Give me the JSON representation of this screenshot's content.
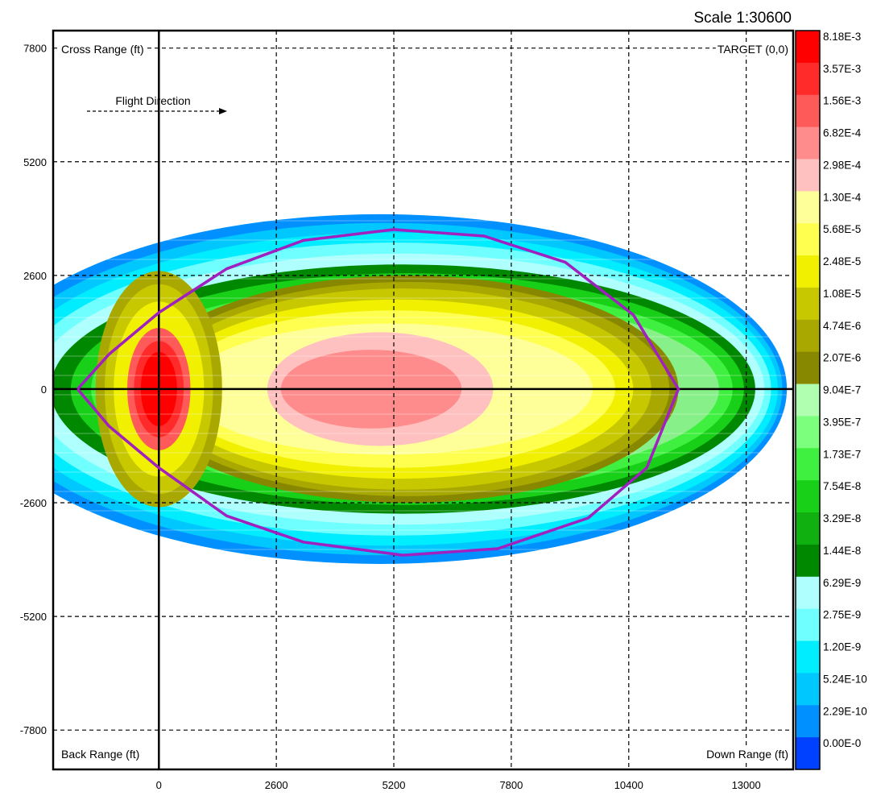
{
  "chart_data": {
    "type": "heatmap",
    "scale_label": "Scale 1:30600",
    "corner_labels": {
      "top_left": "Cross Range (ft)",
      "top_right": "TARGET (0,0)",
      "bottom_left": "Back Range (ft)",
      "bottom_right": "Down Range (ft)"
    },
    "annotation": "Flight Direction",
    "x_ticks": [
      0,
      2600,
      5200,
      7800,
      10400,
      13000
    ],
    "y_ticks": [
      7800,
      5200,
      2600,
      0,
      -2600,
      -5200,
      -7800
    ],
    "xlim": [
      -2340,
      14040
    ],
    "ylim": [
      -8700,
      8200
    ],
    "grid": true,
    "legend_placement": "right",
    "legend": [
      {
        "label": "8.18E-3",
        "color": "#ff0000"
      },
      {
        "label": "3.57E-3",
        "color": "#ff2a2a"
      },
      {
        "label": "1.56E-3",
        "color": "#ff5a5a"
      },
      {
        "label": "6.82E-4",
        "color": "#ff8c8c"
      },
      {
        "label": "2.98E-4",
        "color": "#ffc0c0"
      },
      {
        "label": "1.30E-4",
        "color": "#ffff9a"
      },
      {
        "label": "5.68E-5",
        "color": "#ffff50"
      },
      {
        "label": "2.48E-5",
        "color": "#f0f000"
      },
      {
        "label": "1.08E-5",
        "color": "#c8c800"
      },
      {
        "label": "4.74E-6",
        "color": "#a8a800"
      },
      {
        "label": "2.07E-6",
        "color": "#888800"
      },
      {
        "label": "9.04E-7",
        "color": "#b0ffb0"
      },
      {
        "label": "3.95E-7",
        "color": "#7cff7c"
      },
      {
        "label": "1.73E-7",
        "color": "#40f040"
      },
      {
        "label": "7.54E-8",
        "color": "#18d018"
      },
      {
        "label": "3.29E-8",
        "color": "#10b010"
      },
      {
        "label": "1.44E-8",
        "color": "#008800"
      },
      {
        "label": "6.29E-9",
        "color": "#b0ffff"
      },
      {
        "label": "2.75E-9",
        "color": "#70ffff"
      },
      {
        "label": "1.20E-9",
        "color": "#00ecff"
      },
      {
        "label": "5.24E-10",
        "color": "#00c8ff"
      },
      {
        "label": "2.29E-10",
        "color": "#0090ff"
      },
      {
        "label": "0.00E-0",
        "color": "#0040ff"
      }
    ],
    "contour_regions": [
      {
        "color": "#0090ff",
        "cx": 4900,
        "cy": 0,
        "rx": 9000,
        "ry": 4000
      },
      {
        "color": "#00c8ff",
        "cx": 5000,
        "cy": 0,
        "rx": 8800,
        "ry": 3800
      },
      {
        "color": "#00ecff",
        "cx": 5100,
        "cy": 0,
        "rx": 8600,
        "ry": 3580
      },
      {
        "color": "#70ffff",
        "cx": 5200,
        "cy": 0,
        "rx": 8350,
        "ry": 3350
      },
      {
        "color": "#b0ffff",
        "cx": 5300,
        "cy": 0,
        "rx": 8100,
        "ry": 3100
      },
      {
        "color": "#008800",
        "cx": 5400,
        "cy": 0,
        "rx": 7800,
        "ry": 2850
      },
      {
        "color": "#18d018",
        "cx": 5500,
        "cy": 0,
        "rx": 7450,
        "ry": 2650
      },
      {
        "color": "#40f040",
        "cx": 5600,
        "cy": 0,
        "rx": 7100,
        "ry": 2400
      },
      {
        "color": "#88f088",
        "cx": 5700,
        "cy": 0,
        "rx": 6700,
        "ry": 2150
      },
      {
        "color": "#888800",
        "cx": 5500,
        "cy": 0,
        "rx": 6000,
        "ry": 2600
      },
      {
        "color": "#a8a800",
        "cx": 5500,
        "cy": 0,
        "rx": 5800,
        "ry": 2450
      },
      {
        "color": "#c8c800",
        "cx": 5400,
        "cy": 0,
        "rx": 5500,
        "ry": 2300
      },
      {
        "color": "#f0f000",
        "cx": 5300,
        "cy": 0,
        "rx": 5200,
        "ry": 2050
      },
      {
        "color": "#ffff50",
        "cx": 5200,
        "cy": 0,
        "rx": 4900,
        "ry": 1800
      },
      {
        "color": "#ffff9a",
        "cx": 5100,
        "cy": 0,
        "rx": 4500,
        "ry": 1500
      },
      {
        "color": "#ffc0c0",
        "cx": 4900,
        "cy": 0,
        "rx": 2500,
        "ry": 1300
      },
      {
        "color": "#ff8c8c",
        "cx": 4700,
        "cy": 0,
        "rx": 2000,
        "ry": 900
      },
      {
        "color": "#a8a800",
        "cx": 0,
        "cy": 0,
        "rx": 1400,
        "ry": 2700
      },
      {
        "color": "#c8c800",
        "cx": 0,
        "cy": 0,
        "rx": 1200,
        "ry": 2400
      },
      {
        "color": "#f0f000",
        "cx": 0,
        "cy": 0,
        "rx": 1000,
        "ry": 2000
      },
      {
        "color": "#ff5a5a",
        "cx": 0,
        "cy": 0,
        "rx": 700,
        "ry": 1400
      },
      {
        "color": "#ff2a2a",
        "cx": 0,
        "cy": 0,
        "rx": 550,
        "ry": 1100
      },
      {
        "color": "#ff0000",
        "cx": 0,
        "cy": 0,
        "rx": 400,
        "ry": 850
      }
    ],
    "boundary_curve": {
      "color": "#a020c0",
      "points": [
        [
          -1800,
          0
        ],
        [
          -1100,
          800
        ],
        [
          0,
          1750
        ],
        [
          1500,
          2750
        ],
        [
          3200,
          3400
        ],
        [
          5200,
          3650
        ],
        [
          7200,
          3500
        ],
        [
          9000,
          2900
        ],
        [
          10500,
          1700
        ],
        [
          11500,
          0
        ],
        [
          10800,
          -1800
        ],
        [
          9500,
          -2950
        ],
        [
          7500,
          -3650
        ],
        [
          5400,
          -3800
        ],
        [
          3200,
          -3500
        ],
        [
          1500,
          -2900
        ],
        [
          0,
          -1800
        ],
        [
          -1100,
          -850
        ],
        [
          -1800,
          0
        ]
      ]
    }
  }
}
